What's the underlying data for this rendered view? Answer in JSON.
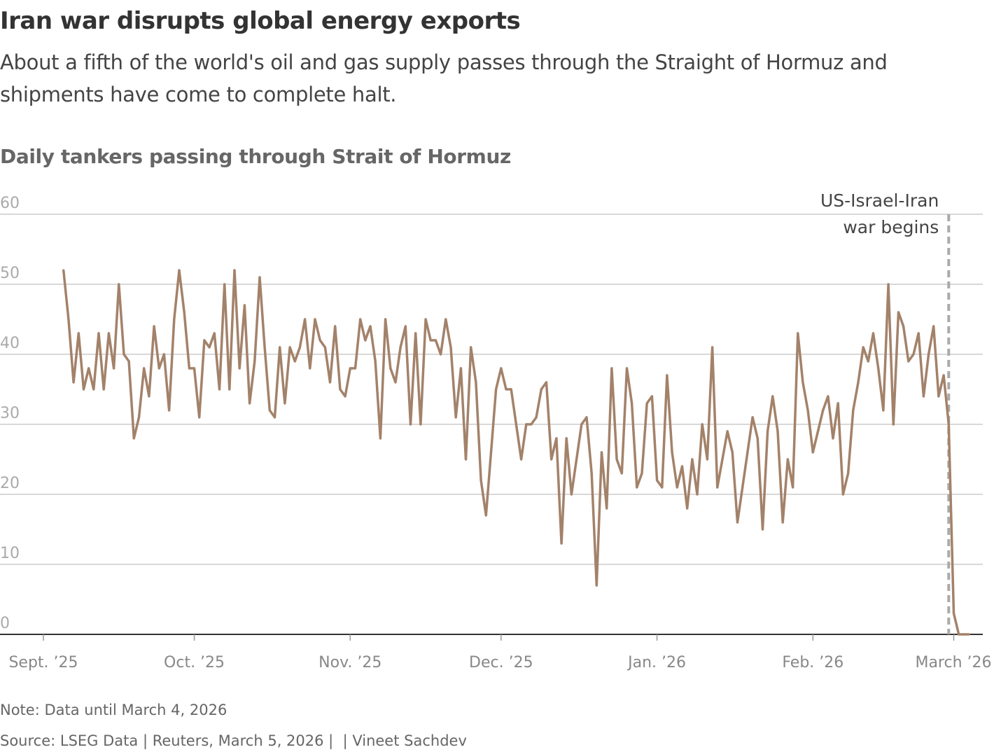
{
  "header": {
    "title": "Iran war disrupts global energy exports",
    "subtitle": "About a fifth of the world's oil and gas supply passes through the Straight of Hormuz and shipments have come to complete halt."
  },
  "chart_data": {
    "type": "line",
    "title": "Daily tankers passing through Strait of Hormuz",
    "xlabel": "",
    "ylabel": "",
    "ylim": [
      0,
      60
    ],
    "y_ticks": [
      "0",
      "10",
      "20",
      "30",
      "40",
      "50",
      "60"
    ],
    "x_ticks": [
      {
        "date": "2025-09-01",
        "label": "Sept. ’25"
      },
      {
        "date": "2025-10-01",
        "label": "Oct. ’25"
      },
      {
        "date": "2025-11-01",
        "label": "Nov. ’25"
      },
      {
        "date": "2025-12-01",
        "label": "Dec. ’25"
      },
      {
        "date": "2026-01-01",
        "label": "Jan. ’26"
      },
      {
        "date": "2026-02-01",
        "label": "Feb. ’26"
      },
      {
        "date": "2026-03-01",
        "label": "March ’26"
      }
    ],
    "grid": true,
    "line_color": "#a3826a",
    "annotation": {
      "date": "2026-02-28",
      "lines": [
        "US-Israel-Iran",
        "war begins"
      ],
      "color": "#aaaaaa"
    },
    "series": [
      {
        "x": [
          "2025-09-05",
          "2025-09-06",
          "2025-09-07",
          "2025-09-08",
          "2025-09-09",
          "2025-09-10",
          "2025-09-11",
          "2025-09-12",
          "2025-09-13",
          "2025-09-14",
          "2025-09-15",
          "2025-09-16",
          "2025-09-17",
          "2025-09-18",
          "2025-09-19",
          "2025-09-20",
          "2025-09-21",
          "2025-09-22",
          "2025-09-23",
          "2025-09-24",
          "2025-09-25",
          "2025-09-26",
          "2025-09-27",
          "2025-09-28",
          "2025-09-29",
          "2025-09-30",
          "2025-10-01",
          "2025-10-02",
          "2025-10-03",
          "2025-10-04",
          "2025-10-05",
          "2025-10-06",
          "2025-10-07",
          "2025-10-08",
          "2025-10-09",
          "2025-10-10",
          "2025-10-11",
          "2025-10-12",
          "2025-10-13",
          "2025-10-14",
          "2025-10-15",
          "2025-10-16",
          "2025-10-17",
          "2025-10-18",
          "2025-10-19",
          "2025-10-20",
          "2025-10-21",
          "2025-10-22",
          "2025-10-23",
          "2025-10-24",
          "2025-10-25",
          "2025-10-26",
          "2025-10-27",
          "2025-10-28",
          "2025-10-29",
          "2025-10-30",
          "2025-10-31",
          "2025-11-01",
          "2025-11-02",
          "2025-11-03",
          "2025-11-04",
          "2025-11-05",
          "2025-11-06",
          "2025-11-07",
          "2025-11-08",
          "2025-11-09",
          "2025-11-10",
          "2025-11-11",
          "2025-11-12",
          "2025-11-13",
          "2025-11-14",
          "2025-11-15",
          "2025-11-16",
          "2025-11-17",
          "2025-11-18",
          "2025-11-19",
          "2025-11-20",
          "2025-11-21",
          "2025-11-22",
          "2025-11-23",
          "2025-11-24",
          "2025-11-25",
          "2025-11-26",
          "2025-11-27",
          "2025-11-28",
          "2025-11-29",
          "2025-11-30",
          "2025-12-01",
          "2025-12-02",
          "2025-12-03",
          "2025-12-04",
          "2025-12-05",
          "2025-12-06",
          "2025-12-07",
          "2025-12-08",
          "2025-12-09",
          "2025-12-10",
          "2025-12-11",
          "2025-12-12",
          "2025-12-13",
          "2025-12-14",
          "2025-12-15",
          "2025-12-16",
          "2025-12-17",
          "2025-12-18",
          "2025-12-19",
          "2025-12-20",
          "2025-12-21",
          "2025-12-22",
          "2025-12-23",
          "2025-12-24",
          "2025-12-25",
          "2025-12-26",
          "2025-12-27",
          "2025-12-28",
          "2025-12-29",
          "2025-12-30",
          "2025-12-31",
          "2026-01-01",
          "2026-01-02",
          "2026-01-03",
          "2026-01-04",
          "2026-01-05",
          "2026-01-06",
          "2026-01-07",
          "2026-01-08",
          "2026-01-09",
          "2026-01-10",
          "2026-01-11",
          "2026-01-12",
          "2026-01-13",
          "2026-01-14",
          "2026-01-15",
          "2026-01-16",
          "2026-01-17",
          "2026-01-18",
          "2026-01-19",
          "2026-01-20",
          "2026-01-21",
          "2026-01-22",
          "2026-01-23",
          "2026-01-24",
          "2026-01-25",
          "2026-01-26",
          "2026-01-27",
          "2026-01-28",
          "2026-01-29",
          "2026-01-30",
          "2026-01-31",
          "2026-02-01",
          "2026-02-02",
          "2026-02-03",
          "2026-02-04",
          "2026-02-05",
          "2026-02-06",
          "2026-02-07",
          "2026-02-08",
          "2026-02-09",
          "2026-02-10",
          "2026-02-11",
          "2026-02-12",
          "2026-02-13",
          "2026-02-14",
          "2026-02-15",
          "2026-02-16",
          "2026-02-17",
          "2026-02-18",
          "2026-02-19",
          "2026-02-20",
          "2026-02-21",
          "2026-02-22",
          "2026-02-23",
          "2026-02-24",
          "2026-02-25",
          "2026-02-26",
          "2026-02-27",
          "2026-02-28",
          "2026-03-01",
          "2026-03-02",
          "2026-03-03",
          "2026-03-04"
        ],
        "values": [
          52,
          45,
          36,
          43,
          35,
          38,
          35,
          43,
          35,
          43,
          38,
          50,
          40,
          39,
          28,
          31,
          38,
          34,
          44,
          38,
          40,
          32,
          45,
          52,
          46,
          38,
          38,
          31,
          42,
          41,
          43,
          35,
          50,
          35,
          52,
          38,
          47,
          33,
          39,
          51,
          41,
          32,
          31,
          41,
          33,
          41,
          39,
          41,
          45,
          38,
          45,
          42,
          41,
          36,
          44,
          35,
          34,
          38,
          38,
          45,
          42,
          44,
          39,
          28,
          45,
          38,
          36,
          41,
          44,
          30,
          43,
          30,
          45,
          42,
          42,
          40,
          45,
          41,
          31,
          38,
          25,
          41,
          36,
          22,
          17,
          26,
          35,
          38,
          35,
          35,
          30,
          25,
          30,
          30,
          31,
          35,
          36,
          25,
          28,
          13,
          28,
          20,
          25,
          30,
          31,
          23,
          7,
          26,
          18,
          38,
          25,
          23,
          38,
          33,
          21,
          23,
          33,
          34,
          22,
          21,
          37,
          26,
          21,
          24,
          18,
          25,
          20,
          30,
          25,
          41,
          21,
          25,
          29,
          26,
          16,
          21,
          26,
          31,
          28,
          15,
          29,
          34,
          29,
          16,
          25,
          21,
          43,
          36,
          32,
          26,
          29,
          32,
          34,
          28,
          33,
          20,
          23,
          32,
          36,
          41,
          39,
          43,
          38,
          32,
          50,
          30,
          46,
          44,
          39,
          40,
          43,
          34,
          40,
          44,
          34,
          37,
          30,
          3,
          0,
          0,
          0
        ]
      }
    ]
  },
  "footer": {
    "note": "Note: Data until March 4, 2026",
    "source": "Source: LSEG Data | Reuters, March 5, 2026 |  | Vineet Sachdev"
  }
}
